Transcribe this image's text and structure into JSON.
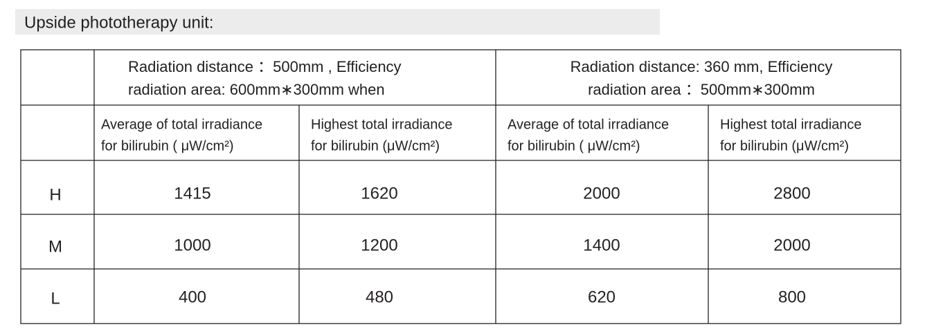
{
  "header": {
    "title": "Upside phototherapy unit:"
  },
  "table": {
    "group_headers": [
      {
        "lines": [
          "Radiation distance ：500mm , Efficiency",
          "radiation area: 600mm∗300mm when"
        ]
      },
      {
        "lines": [
          "Radiation distance: 360 mm, Efficiency",
          "radiation area ：500mm∗300mm"
        ]
      }
    ],
    "column_headers": [
      {
        "lines": [
          "Average of total irradiance",
          "for bilirubin ( μW/cm²)"
        ]
      },
      {
        "lines": [
          "Highest total irradiance",
          "for bilirubin (μW/cm²)"
        ]
      },
      {
        "lines": [
          "Average of total irradiance",
          "for bilirubin ( μW/cm²)"
        ]
      },
      {
        "lines": [
          "Highest total irradiance",
          "for bilirubin (μW/cm²)"
        ]
      }
    ],
    "rows": [
      [
        "H",
        1415,
        1620,
        2000,
        2800
      ],
      [
        "M",
        1000,
        1200,
        1400,
        2000
      ],
      [
        "L",
        400,
        480,
        620,
        800
      ]
    ]
  }
}
